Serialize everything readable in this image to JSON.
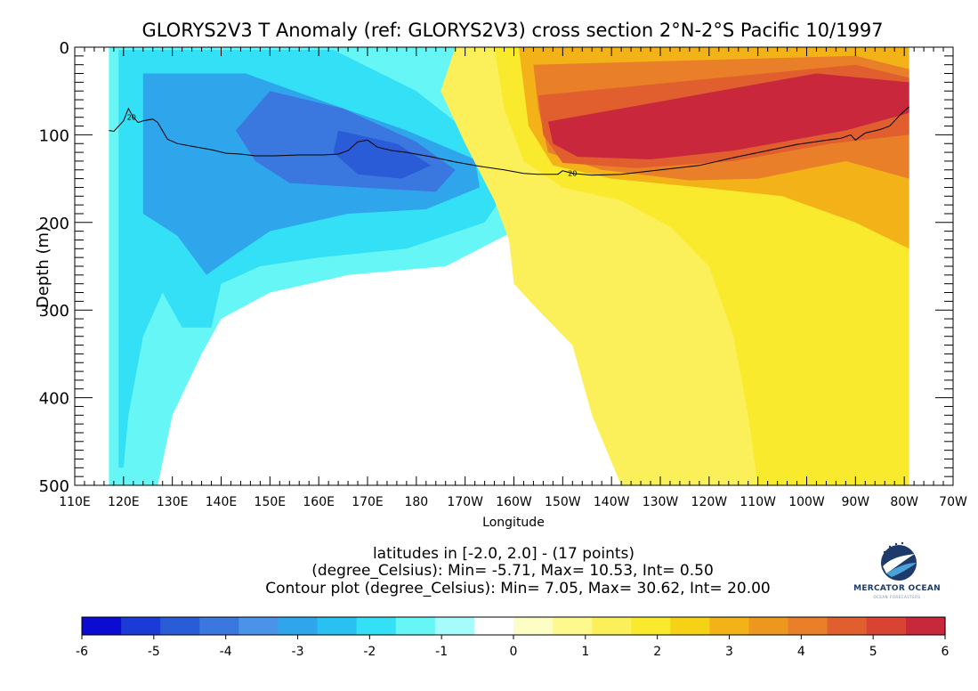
{
  "title": "GLORYS2V3 T Anomaly (ref: GLORYS2V3) cross section 2°N-2°S Pacific 10/1997",
  "info_lines": [
    "latitudes in [-2.0, 2.0] - (17 points)",
    "(degree_Celsius): Min= -5.71, Max= 10.53, Int= 0.50",
    "Contour plot (degree_Celsius): Min= 7.05, Max= 30.62, Int= 20.00"
  ],
  "logo": {
    "name": "MERCATOR OCEAN",
    "sub": "OCEAN FORECASTERS"
  },
  "colors": {
    "colorbar": [
      "#0b0bd2",
      "#1c3ad6",
      "#2b5cd8",
      "#3a78e0",
      "#4a93e8",
      "#2fa6ec",
      "#29c0f2",
      "#33e0f5",
      "#66f6f6",
      "#a6fbfb",
      "#ffffff",
      "#fdfdc6",
      "#fdf98d",
      "#fbf05a",
      "#f9ea2d",
      "#f5d215",
      "#f2b218",
      "#ec981f",
      "#e97f28",
      "#e15e2e",
      "#d94432",
      "#c9283c"
    ]
  },
  "chart_data": {
    "type": "heatmap",
    "title": "GLORYS2V3 T Anomaly (ref: GLORYS2V3) cross section 2°N-2°S Pacific 10/1997",
    "xlabel": "Longitude",
    "ylabel": "Depth (m)",
    "x_range": [
      110,
      290
    ],
    "y_range": [
      0,
      500
    ],
    "x_data_extent": [
      117,
      281
    ],
    "x_ticks": [
      {
        "value": 110,
        "label": "110E"
      },
      {
        "value": 120,
        "label": "120E"
      },
      {
        "value": 130,
        "label": "130E"
      },
      {
        "value": 140,
        "label": "140E"
      },
      {
        "value": 150,
        "label": "150E"
      },
      {
        "value": 160,
        "label": "160E"
      },
      {
        "value": 170,
        "label": "170E"
      },
      {
        "value": 180,
        "label": "180"
      },
      {
        "value": 190,
        "label": "170W"
      },
      {
        "value": 200,
        "label": "160W"
      },
      {
        "value": 210,
        "label": "150W"
      },
      {
        "value": 220,
        "label": "140W"
      },
      {
        "value": 230,
        "label": "130W"
      },
      {
        "value": 240,
        "label": "120W"
      },
      {
        "value": 250,
        "label": "110W"
      },
      {
        "value": 260,
        "label": "100W"
      },
      {
        "value": 270,
        "label": "90W"
      },
      {
        "value": 280,
        "label": "80W"
      },
      {
        "value": 290,
        "label": "70W"
      }
    ],
    "y_ticks": [
      {
        "value": 0,
        "label": "0"
      },
      {
        "value": 100,
        "label": "100"
      },
      {
        "value": 200,
        "label": "200"
      },
      {
        "value": 300,
        "label": "300"
      },
      {
        "value": 400,
        "label": "400"
      },
      {
        "value": 500,
        "label": "500"
      }
    ],
    "color_scale": {
      "min": -6,
      "max": 6,
      "interval": 0.5,
      "tick_values": [
        -6,
        -5,
        -4,
        -3,
        -2,
        -1,
        0,
        1,
        2,
        3,
        4,
        5,
        6
      ],
      "tick_labels": [
        "-6",
        "-5",
        "-4",
        "-3",
        "-2",
        "-1",
        "0",
        "1",
        "2",
        "3",
        "4",
        "5",
        "6"
      ]
    },
    "contour": {
      "label": "20",
      "value": 20,
      "points": [
        [
          117,
          95
        ],
        [
          118,
          96
        ],
        [
          120,
          84
        ],
        [
          121,
          70
        ],
        [
          122,
          80
        ],
        [
          123,
          86
        ],
        [
          124,
          84
        ],
        [
          126,
          82
        ],
        [
          127,
          86
        ],
        [
          129,
          105
        ],
        [
          131,
          110
        ],
        [
          134,
          113
        ],
        [
          138,
          117
        ],
        [
          141,
          121
        ],
        [
          144,
          122
        ],
        [
          147,
          124
        ],
        [
          151,
          124
        ],
        [
          156,
          123
        ],
        [
          161,
          123
        ],
        [
          164,
          122
        ],
        [
          166,
          118
        ],
        [
          168,
          108
        ],
        [
          170,
          106
        ],
        [
          172,
          114
        ],
        [
          175,
          118
        ],
        [
          178,
          120
        ],
        [
          183,
          125
        ],
        [
          188,
          131
        ],
        [
          193,
          136
        ],
        [
          198,
          140
        ],
        [
          202,
          144
        ],
        [
          205,
          145
        ],
        [
          209,
          145
        ],
        [
          210,
          141
        ],
        [
          212,
          144
        ],
        [
          216,
          146
        ],
        [
          222,
          145
        ],
        [
          230,
          140
        ],
        [
          238,
          135
        ],
        [
          245,
          126
        ],
        [
          252,
          118
        ],
        [
          258,
          111
        ],
        [
          263,
          107
        ],
        [
          267,
          104
        ],
        [
          269,
          100
        ],
        [
          270,
          106
        ],
        [
          272,
          98
        ],
        [
          275,
          94
        ],
        [
          277,
          90
        ],
        [
          279,
          78
        ],
        [
          281,
          68
        ]
      ]
    },
    "anomaly_regions": [
      {
        "value": -1,
        "polygon": [
          [
            117,
            0
          ],
          [
            270,
            0
          ],
          [
            268,
            60
          ],
          [
            250,
            85
          ],
          [
            230,
            100
          ],
          [
            210,
            125
          ],
          [
            200,
            152
          ],
          [
            200,
            210
          ],
          [
            186,
            250
          ],
          [
            166,
            260
          ],
          [
            150,
            280
          ],
          [
            140,
            310
          ],
          [
            136,
            350
          ],
          [
            130,
            420
          ],
          [
            127,
            500
          ],
          [
            117,
            500
          ]
        ]
      },
      {
        "value": -2,
        "polygon": [
          [
            119,
            3
          ],
          [
            163,
            3
          ],
          [
            180,
            50
          ],
          [
            196,
            120
          ],
          [
            199,
            160
          ],
          [
            194,
            200
          ],
          [
            178,
            230
          ],
          [
            160,
            240
          ],
          [
            148,
            250
          ],
          [
            140,
            270
          ],
          [
            138,
            320
          ],
          [
            132,
            320
          ],
          [
            128,
            280
          ],
          [
            124,
            330
          ],
          [
            121,
            420
          ],
          [
            120,
            480
          ],
          [
            119,
            480
          ]
        ]
      },
      {
        "value": -3,
        "polygon": [
          [
            124,
            30
          ],
          [
            145,
            30
          ],
          [
            160,
            60
          ],
          [
            178,
            95
          ],
          [
            192,
            128
          ],
          [
            193,
            160
          ],
          [
            182,
            185
          ],
          [
            166,
            190
          ],
          [
            150,
            210
          ],
          [
            142,
            240
          ],
          [
            137,
            260
          ],
          [
            131,
            215
          ],
          [
            124,
            190
          ]
        ]
      },
      {
        "value": -4,
        "polygon": [
          [
            150,
            50
          ],
          [
            165,
            70
          ],
          [
            180,
            108
          ],
          [
            188,
            140
          ],
          [
            184,
            165
          ],
          [
            168,
            160
          ],
          [
            154,
            155
          ],
          [
            147,
            130
          ],
          [
            143,
            95
          ]
        ]
      },
      {
        "value": -5,
        "polygon": [
          [
            164,
            95
          ],
          [
            176,
            110
          ],
          [
            183,
            135
          ],
          [
            177,
            150
          ],
          [
            168,
            145
          ],
          [
            163,
            120
          ]
        ]
      },
      {
        "value": 1,
        "polygon": [
          [
            188,
            0
          ],
          [
            281,
            0
          ],
          [
            281,
            500
          ],
          [
            222,
            500
          ],
          [
            216,
            420
          ],
          [
            212,
            340
          ],
          [
            205,
            300
          ],
          [
            200,
            270
          ],
          [
            199,
            220
          ],
          [
            196,
            175
          ],
          [
            190,
            110
          ],
          [
            185,
            50
          ]
        ]
      },
      {
        "value": 2,
        "polygon": [
          [
            196,
            0
          ],
          [
            281,
            0
          ],
          [
            281,
            500
          ],
          [
            250,
            500
          ],
          [
            248,
            420
          ],
          [
            245,
            330
          ],
          [
            240,
            250
          ],
          [
            232,
            205
          ],
          [
            222,
            175
          ],
          [
            210,
            160
          ],
          [
            202,
            130
          ],
          [
            198,
            70
          ]
        ]
      },
      {
        "value": 3,
        "polygon": [
          [
            201,
            0
          ],
          [
            281,
            0
          ],
          [
            281,
            230
          ],
          [
            270,
            200
          ],
          [
            255,
            170
          ],
          [
            238,
            160
          ],
          [
            220,
            150
          ],
          [
            208,
            135
          ],
          [
            203,
            90
          ]
        ]
      },
      {
        "value": 4,
        "polygon": [
          [
            204,
            20
          ],
          [
            270,
            10
          ],
          [
            281,
            25
          ],
          [
            281,
            150
          ],
          [
            268,
            130
          ],
          [
            250,
            150
          ],
          [
            236,
            152
          ],
          [
            218,
            140
          ],
          [
            207,
            120
          ],
          [
            205,
            70
          ]
        ]
      },
      {
        "value": 5,
        "polygon": [
          [
            205,
            55
          ],
          [
            270,
            20
          ],
          [
            281,
            35
          ],
          [
            281,
            100
          ],
          [
            265,
            110
          ],
          [
            245,
            130
          ],
          [
            225,
            138
          ],
          [
            210,
            132
          ],
          [
            206,
            100
          ]
        ]
      },
      {
        "value": 6,
        "polygon": [
          [
            207,
            85
          ],
          [
            262,
            30
          ],
          [
            281,
            40
          ],
          [
            281,
            75
          ],
          [
            268,
            95
          ],
          [
            245,
            118
          ],
          [
            228,
            128
          ],
          [
            213,
            125
          ],
          [
            208,
            110
          ]
        ]
      }
    ]
  }
}
